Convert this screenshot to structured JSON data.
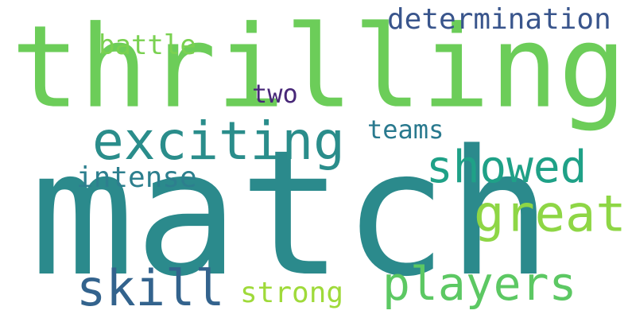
{
  "words": [
    {
      "key": "thrilling",
      "text": "thrilling",
      "color": "#6ccd59"
    },
    {
      "key": "match",
      "text": "match",
      "color": "#2b8a8c"
    },
    {
      "key": "exciting",
      "text": "exciting",
      "color": "#2a8d8b"
    },
    {
      "key": "showed",
      "text": "showed",
      "color": "#1fa187"
    },
    {
      "key": "great",
      "text": "great",
      "color": "#8ed645"
    },
    {
      "key": "players",
      "text": "players",
      "color": "#5cc863"
    },
    {
      "key": "skill",
      "text": "skill",
      "color": "#33638d"
    },
    {
      "key": "intense",
      "text": "intense",
      "color": "#2d7f8e"
    },
    {
      "key": "battle",
      "text": "battle",
      "color": "#7ad151"
    },
    {
      "key": "determination",
      "text": "determination",
      "color": "#39558c"
    },
    {
      "key": "teams",
      "text": "teams",
      "color": "#29798e"
    },
    {
      "key": "two",
      "text": "two",
      "color": "#482878"
    },
    {
      "key": "strong",
      "text": "strong",
      "color": "#9fda3a"
    }
  ]
}
